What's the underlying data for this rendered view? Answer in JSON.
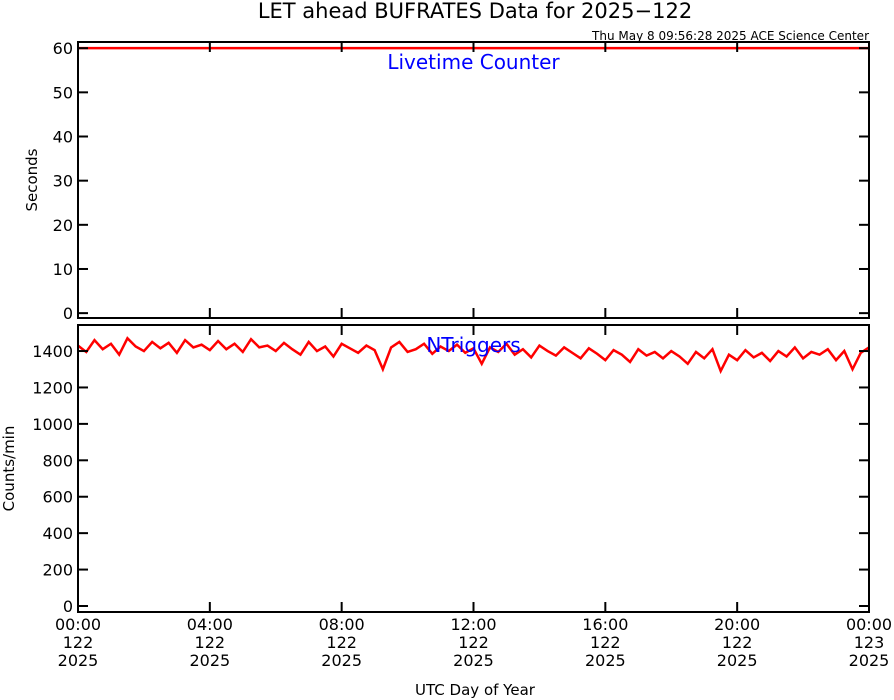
{
  "title": "LET ahead BUFRATES Data for 2025−122",
  "subtitle": "Thu May  8 09:56:28 2025 ACE Science Center",
  "xlabel": "UTC Day of Year",
  "chart_data": [
    {
      "type": "line",
      "ylabel": "Seconds",
      "annotation": "Livetime Counter",
      "x": [
        0,
        24
      ],
      "series": [
        {
          "color": "#ff0000",
          "values": [
            60,
            60
          ]
        }
      ],
      "xlim": [
        0,
        24
      ],
      "xticks": [
        0,
        4,
        8,
        12,
        16,
        20,
        24
      ],
      "ylim": [
        -1.1,
        61.4
      ],
      "yticks": [
        0,
        10,
        20,
        30,
        40,
        50,
        60
      ]
    },
    {
      "type": "line",
      "ylabel": "Counts/min",
      "annotation": "NTriggers",
      "x": [
        0,
        0.25,
        0.5,
        0.75,
        1,
        1.25,
        1.5,
        1.75,
        2,
        2.25,
        2.5,
        2.75,
        3,
        3.25,
        3.5,
        3.75,
        4,
        4.25,
        4.5,
        4.75,
        5,
        5.25,
        5.5,
        5.75,
        6,
        6.25,
        6.5,
        6.75,
        7,
        7.25,
        7.5,
        7.75,
        8,
        8.25,
        8.5,
        8.75,
        9,
        9.25,
        9.5,
        9.75,
        10,
        10.25,
        10.5,
        10.75,
        11,
        11.25,
        11.5,
        11.75,
        12,
        12.25,
        12.5,
        12.75,
        13,
        13.25,
        13.5,
        13.75,
        14,
        14.25,
        14.5,
        14.75,
        15,
        15.25,
        15.5,
        15.75,
        16,
        16.25,
        16.5,
        16.75,
        17,
        17.25,
        17.5,
        17.75,
        18,
        18.25,
        18.5,
        18.75,
        19,
        19.25,
        19.5,
        19.75,
        20,
        20.25,
        20.5,
        20.75,
        21,
        21.25,
        21.5,
        21.75,
        22,
        22.25,
        22.5,
        22.75,
        23,
        23.25,
        23.5,
        23.75,
        24
      ],
      "series": [
        {
          "color": "#ff0000",
          "values": [
            1430,
            1395,
            1460,
            1410,
            1440,
            1380,
            1470,
            1425,
            1400,
            1450,
            1415,
            1445,
            1390,
            1460,
            1420,
            1435,
            1405,
            1455,
            1410,
            1440,
            1395,
            1465,
            1420,
            1430,
            1400,
            1445,
            1410,
            1380,
            1450,
            1400,
            1425,
            1370,
            1440,
            1415,
            1390,
            1430,
            1405,
            1300,
            1420,
            1450,
            1395,
            1410,
            1440,
            1385,
            1425,
            1400,
            1435,
            1390,
            1415,
            1330,
            1420,
            1395,
            1440,
            1380,
            1410,
            1365,
            1430,
            1400,
            1375,
            1420,
            1390,
            1360,
            1415,
            1385,
            1350,
            1405,
            1380,
            1340,
            1410,
            1375,
            1395,
            1360,
            1400,
            1370,
            1330,
            1395,
            1360,
            1410,
            1290,
            1380,
            1350,
            1405,
            1365,
            1390,
            1345,
            1400,
            1370,
            1420,
            1360,
            1395,
            1380,
            1410,
            1350,
            1400,
            1300,
            1390,
            1420
          ]
        }
      ],
      "xlim": [
        0,
        24
      ],
      "xticks": [
        {
          "value": 0,
          "label": "00:00\n122\n2025"
        },
        {
          "value": 4,
          "label": "04:00\n122\n2025"
        },
        {
          "value": 8,
          "label": "08:00\n122\n2025"
        },
        {
          "value": 12,
          "label": "12:00\n122\n2025"
        },
        {
          "value": 16,
          "label": "16:00\n122\n2025"
        },
        {
          "value": 20,
          "label": "20:00\n122\n2025"
        },
        {
          "value": 24,
          "label": "00:00\n123\n2025"
        }
      ],
      "ylim": [
        -33,
        1543
      ],
      "yticks": [
        0,
        200,
        400,
        600,
        800,
        1000,
        1200,
        1400
      ]
    }
  ]
}
